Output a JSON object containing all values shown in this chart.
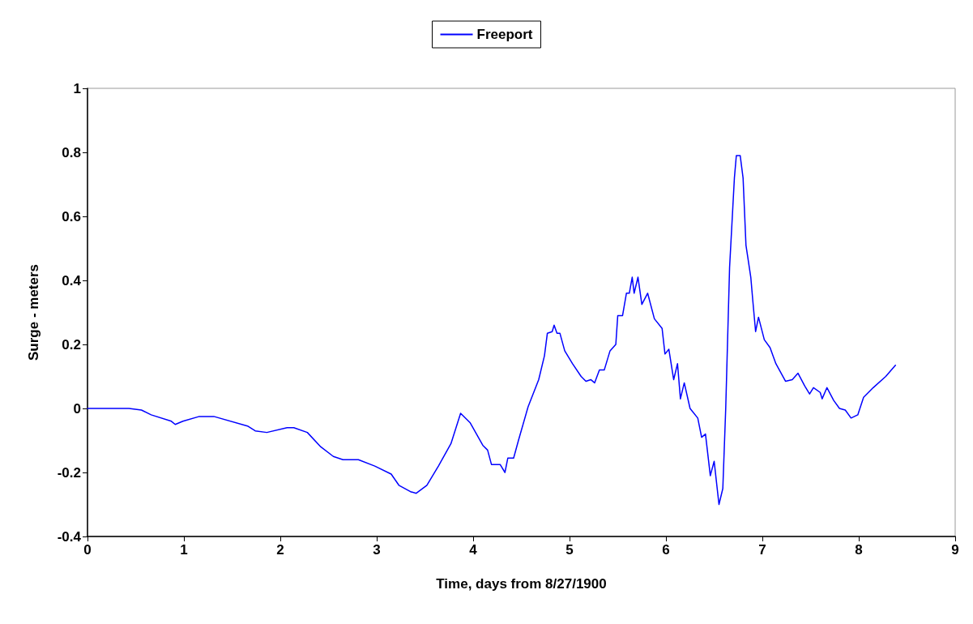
{
  "chart_data": {
    "type": "line",
    "xlabel": "Time, days from 8/27/1900",
    "ylabel": "Surge - meters",
    "xlim": [
      0,
      9
    ],
    "xticks": [
      0,
      1,
      2,
      3,
      4,
      5,
      6,
      7,
      8,
      9
    ],
    "ylim": [
      -0.4,
      1
    ],
    "yticks": [
      -0.4,
      -0.2,
      0,
      0.2,
      0.4,
      0.6,
      0.8,
      1
    ],
    "grid": false,
    "legend": "top",
    "marker": "none",
    "line_style": "solid",
    "series": [
      {
        "name": "Freeport",
        "color": "#0000ff",
        "x": [
          0,
          0.43,
          0.56,
          0.66,
          0.87,
          0.91,
          0.99,
          1.16,
          1.31,
          1.66,
          1.74,
          1.86,
          2.07,
          2.14,
          2.28,
          2.42,
          2.55,
          2.65,
          2.81,
          2.98,
          3.15,
          3.23,
          3.35,
          3.41,
          3.52,
          3.64,
          3.77,
          3.87,
          3.97,
          4.1,
          4.15,
          4.19,
          4.28,
          4.33,
          4.36,
          4.42,
          4.47,
          4.57,
          4.68,
          4.74,
          4.77,
          4.82,
          4.84,
          4.87,
          4.9,
          4.95,
          5.03,
          5.12,
          5.17,
          5.22,
          5.26,
          5.31,
          5.36,
          5.42,
          5.48,
          5.5,
          5.55,
          5.59,
          5.62,
          5.65,
          5.67,
          5.71,
          5.75,
          5.81,
          5.88,
          5.96,
          5.99,
          6.03,
          6.08,
          6.12,
          6.15,
          6.19,
          6.25,
          6.33,
          6.37,
          6.41,
          6.46,
          6.5,
          6.55,
          6.59,
          6.62,
          6.66,
          6.71,
          6.73,
          6.77,
          6.8,
          6.83,
          6.85,
          6.88,
          6.9,
          6.93,
          6.96,
          7.02,
          7.08,
          7.14,
          7.24,
          7.31,
          7.37,
          7.44,
          7.49,
          7.53,
          7.6,
          7.62,
          7.67,
          7.74,
          7.8,
          7.86,
          7.92,
          7.99,
          8.05,
          8.15,
          8.28,
          8.38
        ],
        "values": [
          0,
          0,
          -0.005,
          -0.02,
          -0.04,
          -0.05,
          -0.04,
          -0.025,
          -0.025,
          -0.055,
          -0.07,
          -0.075,
          -0.06,
          -0.06,
          -0.075,
          -0.12,
          -0.15,
          -0.16,
          -0.16,
          -0.18,
          -0.205,
          -0.24,
          -0.26,
          -0.265,
          -0.24,
          -0.18,
          -0.11,
          -0.015,
          -0.045,
          -0.115,
          -0.13,
          -0.175,
          -0.175,
          -0.2,
          -0.155,
          -0.155,
          -0.1,
          0.005,
          0.09,
          0.165,
          0.235,
          0.24,
          0.26,
          0.235,
          0.235,
          0.18,
          0.14,
          0.1,
          0.085,
          0.09,
          0.08,
          0.12,
          0.12,
          0.18,
          0.2,
          0.29,
          0.29,
          0.36,
          0.36,
          0.41,
          0.36,
          0.41,
          0.325,
          0.36,
          0.28,
          0.25,
          0.17,
          0.185,
          0.09,
          0.14,
          0.03,
          0.08,
          0,
          -0.03,
          -0.09,
          -0.08,
          -0.21,
          -0.165,
          -0.3,
          -0.25,
          0,
          0.44,
          0.72,
          0.79,
          0.79,
          0.72,
          0.51,
          0.47,
          0.41,
          0.34,
          0.24,
          0.285,
          0.215,
          0.19,
          0.14,
          0.085,
          0.09,
          0.11,
          0.07,
          0.045,
          0.065,
          0.05,
          0.03,
          0.065,
          0.025,
          0,
          -0.005,
          -0.03,
          -0.02,
          0.035,
          0.065,
          0.1,
          0.135
        ]
      }
    ]
  }
}
